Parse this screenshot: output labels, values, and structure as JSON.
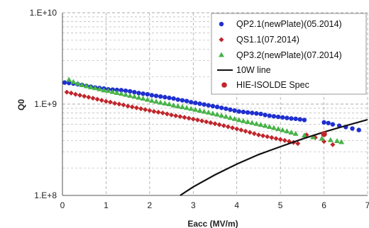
{
  "chart_data": {
    "type": "scatter",
    "xlabel": "Eacc (MV/m)",
    "ylabel": "Q0",
    "xlim": [
      0,
      7
    ],
    "ylim": [
      100000000.0,
      10000000000.0
    ],
    "yscale": "log",
    "x_ticks": [
      "0",
      "1",
      "2",
      "3",
      "4",
      "5",
      "6",
      "7"
    ],
    "y_ticks": [
      "1.E+8",
      "1.E+9",
      "1.E+10"
    ],
    "grid": "on (major and minor horizontal, major vertical dashed)",
    "legend_position": "top-right",
    "series": [
      {
        "name": "QP2.1(newPlate)(05.2014)",
        "marker": "circle",
        "color": "#1f2fd0",
        "points": [
          [
            0.05,
            1720000000.0
          ],
          [
            0.15,
            1700000000.0
          ],
          [
            0.25,
            1680000000.0
          ],
          [
            0.35,
            1650000000.0
          ],
          [
            0.45,
            1620000000.0
          ],
          [
            0.55,
            1580000000.0
          ],
          [
            0.65,
            1550000000.0
          ],
          [
            0.75,
            1520000000.0
          ],
          [
            0.85,
            1500000000.0
          ],
          [
            0.95,
            1480000000.0
          ],
          [
            1.05,
            1450000000.0
          ],
          [
            1.15,
            1440000000.0
          ],
          [
            1.25,
            1430000000.0
          ],
          [
            1.35,
            1420000000.0
          ],
          [
            1.45,
            1400000000.0
          ],
          [
            1.55,
            1380000000.0
          ],
          [
            1.65,
            1350000000.0
          ],
          [
            1.75,
            1320000000.0
          ],
          [
            1.85,
            1300000000.0
          ],
          [
            1.95,
            1280000000.0
          ],
          [
            2.05,
            1250000000.0
          ],
          [
            2.15,
            1230000000.0
          ],
          [
            2.25,
            1210000000.0
          ],
          [
            2.35,
            1190000000.0
          ],
          [
            2.45,
            1170000000.0
          ],
          [
            2.55,
            1150000000.0
          ],
          [
            2.65,
            1120000000.0
          ],
          [
            2.75,
            1100000000.0
          ],
          [
            2.85,
            1080000000.0
          ],
          [
            2.95,
            1050000000.0
          ],
          [
            3.05,
            1030000000.0
          ],
          [
            3.15,
            1010000000.0
          ],
          [
            3.25,
            990000000.0
          ],
          [
            3.35,
            970000000.0
          ],
          [
            3.45,
            950000000.0
          ],
          [
            3.55,
            930000000.0
          ],
          [
            3.65,
            910000000.0
          ],
          [
            3.75,
            890000000.0
          ],
          [
            3.85,
            870000000.0
          ],
          [
            3.95,
            850000000.0
          ],
          [
            4.05,
            830000000.0
          ],
          [
            4.15,
            820000000.0
          ],
          [
            4.25,
            810000000.0
          ],
          [
            4.35,
            800000000.0
          ],
          [
            4.45,
            790000000.0
          ],
          [
            4.55,
            780000000.0
          ],
          [
            4.65,
            760000000.0
          ],
          [
            4.75,
            745000000.0
          ],
          [
            4.85,
            735000000.0
          ],
          [
            4.95,
            725000000.0
          ],
          [
            5.05,
            715000000.0
          ],
          [
            5.15,
            705000000.0
          ],
          [
            5.25,
            695000000.0
          ],
          [
            5.35,
            690000000.0
          ],
          [
            5.45,
            680000000.0
          ],
          [
            5.55,
            670000000.0
          ],
          [
            6.0,
            630000000.0
          ],
          [
            6.1,
            620000000.0
          ],
          [
            6.2,
            600000000.0
          ],
          [
            6.35,
            580000000.0
          ],
          [
            6.5,
            560000000.0
          ],
          [
            6.65,
            540000000.0
          ],
          [
            6.8,
            520000000.0
          ]
        ]
      },
      {
        "name": "QS1.1(07.2014)",
        "marker": "diamond",
        "color": "#c0262b",
        "points": [
          [
            0.1,
            1350000000.0
          ],
          [
            0.2,
            1320000000.0
          ],
          [
            0.3,
            1280000000.0
          ],
          [
            0.4,
            1250000000.0
          ],
          [
            0.5,
            1220000000.0
          ],
          [
            0.6,
            1190000000.0
          ],
          [
            0.7,
            1160000000.0
          ],
          [
            0.8,
            1130000000.0
          ],
          [
            0.9,
            1100000000.0
          ],
          [
            1.0,
            1070000000.0
          ],
          [
            1.1,
            1050000000.0
          ],
          [
            1.2,
            1020000000.0
          ],
          [
            1.3,
            1000000000.0
          ],
          [
            1.4,
            980000000.0
          ],
          [
            1.5,
            950000000.0
          ],
          [
            1.6,
            930000000.0
          ],
          [
            1.7,
            910000000.0
          ],
          [
            1.8,
            890000000.0
          ],
          [
            1.9,
            870000000.0
          ],
          [
            2.0,
            850000000.0
          ],
          [
            2.1,
            830000000.0
          ],
          [
            2.2,
            815000000.0
          ],
          [
            2.3,
            800000000.0
          ],
          [
            2.4,
            780000000.0
          ],
          [
            2.5,
            760000000.0
          ],
          [
            2.6,
            745000000.0
          ],
          [
            2.7,
            730000000.0
          ],
          [
            2.8,
            715000000.0
          ],
          [
            2.9,
            700000000.0
          ],
          [
            3.0,
            685000000.0
          ],
          [
            3.1,
            670000000.0
          ],
          [
            3.2,
            655000000.0
          ],
          [
            3.3,
            640000000.0
          ],
          [
            3.4,
            625000000.0
          ],
          [
            3.5,
            610000000.0
          ],
          [
            3.6,
            595000000.0
          ],
          [
            3.7,
            580000000.0
          ],
          [
            3.8,
            565000000.0
          ],
          [
            3.9,
            550000000.0
          ],
          [
            4.0,
            535000000.0
          ],
          [
            4.1,
            520000000.0
          ],
          [
            4.2,
            505000000.0
          ],
          [
            4.3,
            490000000.0
          ],
          [
            4.4,
            475000000.0
          ],
          [
            4.5,
            460000000.0
          ],
          [
            4.6,
            450000000.0
          ],
          [
            4.7,
            440000000.0
          ],
          [
            4.8,
            430000000.0
          ],
          [
            4.9,
            420000000.0
          ],
          [
            5.0,
            410000000.0
          ],
          [
            5.1,
            400000000.0
          ],
          [
            5.2,
            390000000.0
          ],
          [
            5.3,
            380000000.0
          ],
          [
            5.4,
            370000000.0
          ],
          [
            5.6,
            460000000.0
          ],
          [
            5.8,
            430000000.0
          ],
          [
            6.0,
            390000000.0
          ],
          [
            6.2,
            360000000.0
          ]
        ]
      },
      {
        "name": "QP3.2(newPlate)(07.2014)",
        "marker": "triangle",
        "color": "#46b347",
        "points": [
          [
            0.15,
            1850000000.0
          ],
          [
            0.25,
            1750000000.0
          ],
          [
            0.35,
            1680000000.0
          ],
          [
            0.45,
            1620000000.0
          ],
          [
            0.55,
            1580000000.0
          ],
          [
            0.65,
            1530000000.0
          ],
          [
            0.75,
            1500000000.0
          ],
          [
            0.85,
            1460000000.0
          ],
          [
            0.95,
            1420000000.0
          ],
          [
            1.05,
            1400000000.0
          ],
          [
            1.15,
            1360000000.0
          ],
          [
            1.25,
            1330000000.0
          ],
          [
            1.35,
            1300000000.0
          ],
          [
            1.45,
            1270000000.0
          ],
          [
            1.55,
            1240000000.0
          ],
          [
            1.65,
            1210000000.0
          ],
          [
            1.75,
            1180000000.0
          ],
          [
            1.85,
            1150000000.0
          ],
          [
            1.95,
            1120000000.0
          ],
          [
            2.05,
            1090000000.0
          ],
          [
            2.15,
            1070000000.0
          ],
          [
            2.25,
            1040000000.0
          ],
          [
            2.35,
            1020000000.0
          ],
          [
            2.45,
            1000000000.0
          ],
          [
            2.55,
            970000000.0
          ],
          [
            2.65,
            950000000.0
          ],
          [
            2.75,
            930000000.0
          ],
          [
            2.85,
            910000000.0
          ],
          [
            2.95,
            890000000.0
          ],
          [
            3.05,
            870000000.0
          ],
          [
            3.15,
            850000000.0
          ],
          [
            3.25,
            830000000.0
          ],
          [
            3.35,
            810000000.0
          ],
          [
            3.45,
            790000000.0
          ],
          [
            3.55,
            770000000.0
          ],
          [
            3.65,
            750000000.0
          ],
          [
            3.75,
            730000000.0
          ],
          [
            3.85,
            710000000.0
          ],
          [
            3.95,
            690000000.0
          ],
          [
            4.05,
            670000000.0
          ],
          [
            4.15,
            655000000.0
          ],
          [
            4.25,
            640000000.0
          ],
          [
            4.35,
            625000000.0
          ],
          [
            4.45,
            610000000.0
          ],
          [
            4.55,
            595000000.0
          ],
          [
            4.65,
            580000000.0
          ],
          [
            4.75,
            565000000.0
          ],
          [
            4.85,
            550000000.0
          ],
          [
            4.95,
            535000000.0
          ],
          [
            5.05,
            520000000.0
          ],
          [
            5.15,
            505000000.0
          ],
          [
            5.25,
            490000000.0
          ],
          [
            5.35,
            475000000.0
          ],
          [
            5.55,
            455000000.0
          ],
          [
            5.75,
            435000000.0
          ],
          [
            5.95,
            420000000.0
          ],
          [
            6.15,
            405000000.0
          ],
          [
            6.3,
            395000000.0
          ],
          [
            6.4,
            385000000.0
          ]
        ]
      },
      {
        "name": "10W line",
        "marker": "line",
        "color": "#111111",
        "points": [
          [
            2.7,
            100000000.0
          ],
          [
            3.0,
            124000000.0
          ],
          [
            3.5,
            168000000.0
          ],
          [
            4.0,
            220000000.0
          ],
          [
            4.5,
            280000000.0
          ],
          [
            5.0,
            342000000.0
          ],
          [
            5.5,
            415000000.0
          ],
          [
            6.0,
            495000000.0
          ],
          [
            6.5,
            580000000.0
          ],
          [
            7.0,
            675000000.0
          ]
        ]
      },
      {
        "name": "HIE-ISOLDE Spec",
        "marker": "circle-large",
        "color": "#c0262b",
        "points": [
          [
            6.0,
            470000000.0
          ]
        ]
      }
    ]
  },
  "legend": {
    "items": [
      "QP2.1(newPlate)(05.2014)",
      "QS1.1(07.2014)",
      "QP3.2(newPlate)(07.2014)",
      "10W line",
      "HIE-ISOLDE Spec"
    ]
  }
}
